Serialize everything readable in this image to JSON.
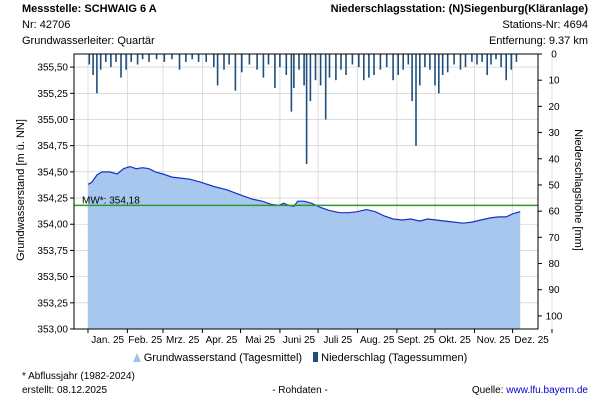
{
  "header": {
    "station_title": "Messstelle: SCHWAIG 6 A",
    "station_nr": "Nr: 42706",
    "aquifer": "Grundwasserleiter: Quartär",
    "rain_title": "Niederschlagsstation: (N)Siegenburg(Kläranlage)",
    "rain_nr": "Stations-Nr: 4694",
    "distance": "Entfernung: 9.37 km"
  },
  "legend": {
    "gw_label": "Grundwasserstand (Tagesmittel)",
    "rain_label": "Niederschlag (Tagessummen)"
  },
  "footer": {
    "note": "* Abflussjahr (1982-2024)",
    "created": "erstellt:  08.12.2025",
    "raw": "- Rohdaten -",
    "source_prefix": "Quelle: ",
    "source_link": "www.lfu.bayern.de"
  },
  "colors": {
    "area_fill": "#a7c7ef",
    "line": "#1a2fc8",
    "mean_line": "#2b9a2b",
    "rain_bars": "#1e4e7c",
    "grid": "#c8c8c8"
  },
  "chart_data": {
    "type": "area",
    "x_tick_labels": [
      "Jan. 25",
      "Feb. 25",
      "Mrz. 25",
      "Apr. 25",
      "Mai 25",
      "Juni 25",
      "Juli 25",
      "Aug. 25",
      "Sept. 25",
      "Okt. 25",
      "Nov. 25",
      "Dez. 25"
    ],
    "ylabel_left": "Grundwasserstand [m ü. NN]",
    "ylabel_right": "Niederschlagshöhe [mm]",
    "y_left_ticks": [
      "353,00",
      "353,25",
      "353,50",
      "353,75",
      "354,00",
      "354,25",
      "354,50",
      "354,75",
      "355,00",
      "355,25",
      "355,50"
    ],
    "y_left_range": [
      353.0,
      355.625
    ],
    "y_right_ticks": [
      "0",
      "10",
      "20",
      "30",
      "40",
      "50",
      "60",
      "70",
      "80",
      "90",
      "100"
    ],
    "y_right_range": [
      0,
      105
    ],
    "mean_label": "MW*: 354,18",
    "mean_value": 354.18,
    "groundwater": {
      "name": "Grundwasserstand (Tagesmittel)",
      "points": [
        [
          "2025-01-01",
          354.38
        ],
        [
          "2025-01-04",
          354.4
        ],
        [
          "2025-01-08",
          354.47
        ],
        [
          "2025-01-12",
          354.5
        ],
        [
          "2025-01-18",
          354.5
        ],
        [
          "2025-01-24",
          354.48
        ],
        [
          "2025-01-29",
          354.53
        ],
        [
          "2025-02-03",
          354.55
        ],
        [
          "2025-02-08",
          354.53
        ],
        [
          "2025-02-13",
          354.54
        ],
        [
          "2025-02-18",
          354.53
        ],
        [
          "2025-02-23",
          354.5
        ],
        [
          "2025-03-01",
          354.48
        ],
        [
          "2025-03-08",
          354.45
        ],
        [
          "2025-03-15",
          354.44
        ],
        [
          "2025-03-22",
          354.43
        ],
        [
          "2025-03-31",
          354.4
        ],
        [
          "2025-04-10",
          354.36
        ],
        [
          "2025-04-20",
          354.33
        ],
        [
          "2025-05-01",
          354.28
        ],
        [
          "2025-05-10",
          354.24
        ],
        [
          "2025-05-18",
          354.22
        ],
        [
          "2025-05-25",
          354.19
        ],
        [
          "2025-05-31",
          354.18
        ],
        [
          "2025-06-04",
          354.2
        ],
        [
          "2025-06-08",
          354.18
        ],
        [
          "2025-06-12",
          354.17
        ],
        [
          "2025-06-15",
          354.22
        ],
        [
          "2025-06-20",
          354.22
        ],
        [
          "2025-06-26",
          354.2
        ],
        [
          "2025-07-03",
          354.16
        ],
        [
          "2025-07-10",
          354.13
        ],
        [
          "2025-07-18",
          354.11
        ],
        [
          "2025-07-25",
          354.11
        ],
        [
          "2025-08-01",
          354.12
        ],
        [
          "2025-08-08",
          354.14
        ],
        [
          "2025-08-15",
          354.12
        ],
        [
          "2025-08-22",
          354.08
        ],
        [
          "2025-08-29",
          354.05
        ],
        [
          "2025-09-05",
          354.04
        ],
        [
          "2025-09-12",
          354.05
        ],
        [
          "2025-09-19",
          354.03
        ],
        [
          "2025-09-25",
          354.05
        ],
        [
          "2025-10-02",
          354.04
        ],
        [
          "2025-10-09",
          354.03
        ],
        [
          "2025-10-16",
          354.02
        ],
        [
          "2025-10-23",
          354.01
        ],
        [
          "2025-10-30",
          354.02
        ],
        [
          "2025-11-06",
          354.04
        ],
        [
          "2025-11-13",
          354.06
        ],
        [
          "2025-11-20",
          354.07
        ],
        [
          "2025-11-26",
          354.07
        ],
        [
          "2025-12-01",
          354.1
        ],
        [
          "2025-12-07",
          354.12
        ]
      ]
    },
    "precipitation": {
      "name": "Niederschlag (Tagessummen)",
      "points": [
        [
          "2025-01-02",
          4
        ],
        [
          "2025-01-05",
          8
        ],
        [
          "2025-01-08",
          15
        ],
        [
          "2025-01-11",
          6
        ],
        [
          "2025-01-15",
          3
        ],
        [
          "2025-01-19",
          5
        ],
        [
          "2025-01-23",
          3
        ],
        [
          "2025-01-27",
          9
        ],
        [
          "2025-01-31",
          6
        ],
        [
          "2025-02-04",
          3
        ],
        [
          "2025-02-09",
          4
        ],
        [
          "2025-02-13",
          2
        ],
        [
          "2025-02-18",
          3
        ],
        [
          "2025-02-24",
          2
        ],
        [
          "2025-03-02",
          3
        ],
        [
          "2025-03-08",
          2
        ],
        [
          "2025-03-14",
          6
        ],
        [
          "2025-03-19",
          3
        ],
        [
          "2025-03-24",
          2
        ],
        [
          "2025-03-29",
          3
        ],
        [
          "2025-04-04",
          3
        ],
        [
          "2025-04-10",
          5
        ],
        [
          "2025-04-13",
          12
        ],
        [
          "2025-04-18",
          6
        ],
        [
          "2025-04-22",
          4
        ],
        [
          "2025-04-27",
          14
        ],
        [
          "2025-05-02",
          7
        ],
        [
          "2025-05-08",
          4
        ],
        [
          "2025-05-14",
          6
        ],
        [
          "2025-05-19",
          9
        ],
        [
          "2025-05-23",
          4
        ],
        [
          "2025-05-28",
          13
        ],
        [
          "2025-06-01",
          5
        ],
        [
          "2025-06-06",
          8
        ],
        [
          "2025-06-10",
          22
        ],
        [
          "2025-06-12",
          13
        ],
        [
          "2025-06-16",
          6
        ],
        [
          "2025-06-20",
          12
        ],
        [
          "2025-06-22",
          42
        ],
        [
          "2025-06-25",
          18
        ],
        [
          "2025-06-29",
          10
        ],
        [
          "2025-07-03",
          12
        ],
        [
          "2025-07-07",
          25
        ],
        [
          "2025-07-10",
          9
        ],
        [
          "2025-07-15",
          10
        ],
        [
          "2025-07-19",
          6
        ],
        [
          "2025-07-23",
          8
        ],
        [
          "2025-07-28",
          4
        ],
        [
          "2025-08-02",
          5
        ],
        [
          "2025-08-06",
          10
        ],
        [
          "2025-08-10",
          9
        ],
        [
          "2025-08-14",
          8
        ],
        [
          "2025-08-19",
          6
        ],
        [
          "2025-08-24",
          5
        ],
        [
          "2025-08-29",
          10
        ],
        [
          "2025-09-02",
          8
        ],
        [
          "2025-09-06",
          6
        ],
        [
          "2025-09-10",
          4
        ],
        [
          "2025-09-13",
          18
        ],
        [
          "2025-09-16",
          35
        ],
        [
          "2025-09-19",
          12
        ],
        [
          "2025-09-23",
          5
        ],
        [
          "2025-09-27",
          6
        ],
        [
          "2025-10-01",
          12
        ],
        [
          "2025-10-04",
          15
        ],
        [
          "2025-10-07",
          8
        ],
        [
          "2025-10-11",
          7
        ],
        [
          "2025-10-16",
          4
        ],
        [
          "2025-10-21",
          6
        ],
        [
          "2025-10-25",
          5
        ],
        [
          "2025-10-30",
          3
        ],
        [
          "2025-11-03",
          4
        ],
        [
          "2025-11-07",
          3
        ],
        [
          "2025-11-11",
          8
        ],
        [
          "2025-11-14",
          4
        ],
        [
          "2025-11-18",
          2
        ],
        [
          "2025-11-22",
          5
        ],
        [
          "2025-11-26",
          10
        ],
        [
          "2025-11-30",
          6
        ],
        [
          "2025-12-04",
          3
        ]
      ]
    }
  }
}
